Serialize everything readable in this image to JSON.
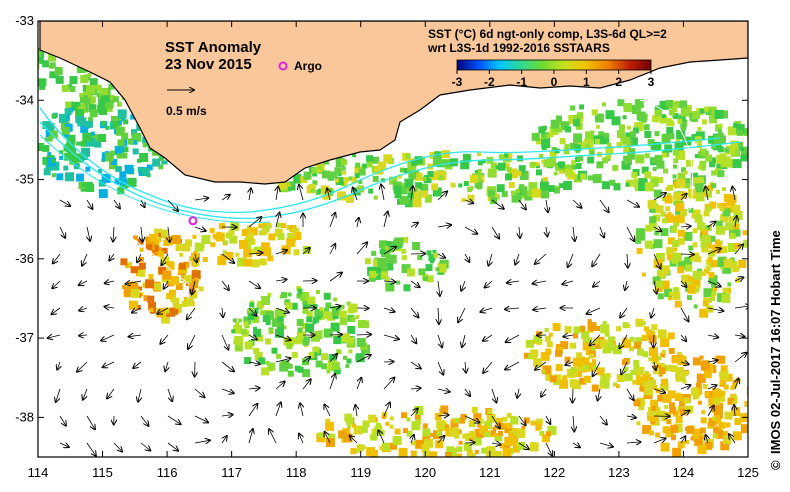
{
  "map": {
    "title": "SST Anomaly",
    "date": "23 Nov 2015",
    "argo_label": "Argo",
    "vector_scale_label": "0.5 m/s",
    "product_line1": "SST (°C) 6d ngt-only comp, L3S-6d QL>=2",
    "product_line2": "wrt L3S-1d 1992-2016 SSTAARS",
    "credit": "IMOS 02-Jul-2017 16:07 Hobart Time",
    "copyright_symbol": "©",
    "colors": {
      "land": "#fac79a",
      "ocean_nodata": "#ffffff",
      "current_contour": "#2ee6f0",
      "argo_marker": "#e020e0",
      "arrow": "#000000"
    },
    "colorbar": {
      "min": -3,
      "max": 3,
      "ticks": [
        "-3",
        "-2",
        "-1",
        "0",
        "1",
        "2",
        "3"
      ],
      "stops": [
        "#00007a",
        "#0050ff",
        "#00c8ff",
        "#30d890",
        "#70dc30",
        "#c8e020",
        "#f0c000",
        "#f08000",
        "#c02000",
        "#700000"
      ]
    },
    "x_axis": {
      "min": 114,
      "max": 125,
      "ticks": [
        "114",
        "115",
        "116",
        "117",
        "118",
        "119",
        "120",
        "121",
        "122",
        "123",
        "124",
        "125"
      ]
    },
    "y_axis": {
      "min": -38.5,
      "max": -33,
      "ticks": [
        "-33",
        "-34",
        "-35",
        "-36",
        "-37",
        "-38"
      ]
    },
    "argo_position": {
      "lon": 116.4,
      "lat": -35.52
    }
  }
}
